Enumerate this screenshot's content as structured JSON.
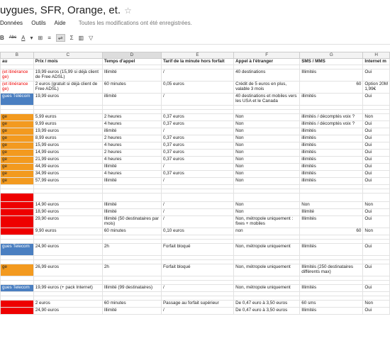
{
  "app": {
    "title": "uygues, SFR, Orange, et.",
    "star_icon": "☆"
  },
  "menu": {
    "items": [
      "Données",
      "Outils",
      "Aide"
    ],
    "saved_status": "Toutes les modifications ont été enregistrées."
  },
  "toolbar": {
    "bold": "B",
    "strike": "Abc",
    "font_color": "A",
    "fill": "▾",
    "borders": "⊞",
    "align": "≡",
    "wrap": "⇌",
    "sum": "Σ",
    "chart": "▥",
    "filter": "▽"
  },
  "sheet": {
    "column_letters": [
      "B",
      "C",
      "D",
      "E",
      "F",
      "G",
      "H"
    ],
    "headers": [
      "au",
      "Prix / mois",
      "Temps d'appel",
      "Tarif de la minute hors forfait",
      "Appel à l'étranger",
      "SMS / MMS",
      "Internet m"
    ],
    "rows": [
      {
        "kind": "blank"
      },
      {
        "kind": "r2",
        "b": "(et itinérance\nge)",
        "b_red": true,
        "c": "19,99 euros (15,99 si déjà client de Free ADSL)",
        "d": "Illimité",
        "e": "/",
        "f": "40 destinations",
        "g": "Illimités",
        "g2": "",
        "h": "Oui"
      },
      {
        "kind": "r2",
        "b": "(et itinérance\nge)",
        "b_red": true,
        "c": "2 euros (gratuit si déjà client de Free ADSL)",
        "d": "60 minutes",
        "e": "0,05 euros",
        "f": "Crédit de 5 euros en plus, valable 3 mois",
        "g": "",
        "g2": "60",
        "h": "Option 20M\n1,99€"
      },
      {
        "kind": "r2",
        "b": "gues Télécom",
        "b_fill": "blue",
        "c": "19,99 euros",
        "d": "illimité",
        "e": "/",
        "f": "40 destinations et mobiles vers les USA et le Canada",
        "g": "illimités",
        "g2": "",
        "h": "Oui"
      },
      {
        "kind": "blank"
      },
      {
        "kind": "blank"
      },
      {
        "kind": "r1",
        "b": "ge",
        "b_fill": "orange",
        "c": "5,99 euros",
        "d": "2 heures",
        "e": "0,37 euros",
        "f": "Non",
        "g": "illimités / décomptés voix ?",
        "g2": "",
        "h": "Non"
      },
      {
        "kind": "r1",
        "b": "ge",
        "b_fill": "orange",
        "c": "9,99 euros",
        "d": "4 heures",
        "e": "0,37 euros",
        "f": "Non",
        "g": "illimités / décomptés voix ?",
        "g2": "",
        "h": "Oui"
      },
      {
        "kind": "r1",
        "b": "ge",
        "b_fill": "orange",
        "c": "19,99 euros",
        "d": "illimité",
        "e": "/",
        "f": "Non",
        "g": "illimités",
        "g2": "",
        "h": "Oui"
      },
      {
        "kind": "r1",
        "b": "ge",
        "b_fill": "orange",
        "c": "8,99 euros",
        "d": "2 heures",
        "e": "0,37 euros",
        "f": "Non",
        "g": "illimités",
        "g2": "",
        "h": "Oui"
      },
      {
        "kind": "r1",
        "b": "ge",
        "b_fill": "orange",
        "c": "15,99 euros",
        "d": "4 heures",
        "e": "0,37 euros",
        "f": "Non",
        "g": "illimités",
        "g2": "",
        "h": "Oui"
      },
      {
        "kind": "r1",
        "b": "ge",
        "b_fill": "orange",
        "c": "14,99 euros",
        "d": "2 heures",
        "e": "0,37 euros",
        "f": "Non",
        "g": "illimités",
        "g2": "",
        "h": "Oui"
      },
      {
        "kind": "r1",
        "b": "ge",
        "b_fill": "orange",
        "c": "21,99 euros",
        "d": "4 heures",
        "e": "0,37 euros",
        "f": "Non",
        "g": "illimités",
        "g2": "",
        "h": "Oui"
      },
      {
        "kind": "r1",
        "b": "ge",
        "b_fill": "orange",
        "c": "44,99 euros",
        "d": "Illimité",
        "e": "/",
        "f": "Non",
        "g": "illimités",
        "g2": "",
        "h": "Oui"
      },
      {
        "kind": "r1",
        "b": "ge",
        "b_fill": "orange",
        "c": "34,99 euros",
        "d": "4 heures",
        "e": "0,37 euros",
        "f": "Non",
        "g": "illimités",
        "g2": "",
        "h": "Oui"
      },
      {
        "kind": "r1",
        "b": "ge",
        "b_fill": "orange",
        "c": "57,99 euros",
        "d": "Illimité",
        "e": "/",
        "f": "Non",
        "g": "illimités",
        "g2": "",
        "h": "Oui"
      },
      {
        "kind": "blank"
      },
      {
        "kind": "blank"
      },
      {
        "kind": "sp",
        "b": "",
        "b_fill": "red",
        "c": "",
        "d": "",
        "e": "",
        "f": "",
        "g": "",
        "g2": "",
        "h": ""
      },
      {
        "kind": "r1",
        "b": "",
        "b_fill": "red",
        "c": "14,90 euros",
        "d": "Illimité",
        "e": "/",
        "f": "Non",
        "g": "Non",
        "g2": "",
        "h": "Non"
      },
      {
        "kind": "r1",
        "b": "",
        "b_fill": "red",
        "c": "18,90 euros",
        "d": "Illimité",
        "e": "/",
        "f": "Non",
        "g": "Illimité",
        "g2": "",
        "h": "Oui"
      },
      {
        "kind": "r2",
        "b": "",
        "b_fill": "red",
        "c": "29,90 euros",
        "d": "Illimité (50 destinataires par mois)",
        "e": "/",
        "f": "Non, métropole uniquement : fixes + mobiles",
        "g": "Illimités",
        "g2": "",
        "h": "Oui"
      },
      {
        "kind": "r1",
        "b": "",
        "b_fill": "red",
        "c": "9,90 euros",
        "d": "60 minutes",
        "e": "0,10 euros",
        "f": "non",
        "g": "",
        "g2": "60",
        "h": "Non"
      },
      {
        "kind": "blank"
      },
      {
        "kind": "blank"
      },
      {
        "kind": "r2",
        "b": "gues Telecom",
        "b_fill": "blue",
        "c": "24,90 euros",
        "d": "2h",
        "e": "Forfait bloqué",
        "f": "Non, métropole uniquement",
        "g": "Illimités",
        "g2": "",
        "h": "Oui"
      },
      {
        "kind": "blank"
      },
      {
        "kind": "blank"
      },
      {
        "kind": "r2",
        "b": "ge",
        "b_fill": "orange",
        "c": "26,99 euros",
        "d": "2h",
        "e": "Forfait bloqué",
        "f": "Non, métropole uniquement",
        "g": "Illimités (250 destinataires différents max)",
        "g2": "",
        "h": "Oui"
      },
      {
        "kind": "blank"
      },
      {
        "kind": "blank"
      },
      {
        "kind": "r1",
        "b": "gues Telecom",
        "b_fill": "blue",
        "c": "19,99 euros (+ pack Internet)",
        "d": "Illimité (99 destinataires)",
        "e": "/",
        "f": "Non, métropole uniquement",
        "g": "Illimités",
        "g2": "",
        "h": "Oui"
      },
      {
        "kind": "blank"
      },
      {
        "kind": "blank"
      },
      {
        "kind": "r1",
        "b": "",
        "b_fill": "red",
        "c": "2 euros",
        "d": "60 minutes",
        "e": "Passage au forfait supérieur",
        "f": "De 0,47 euro à 3,50 euros",
        "g": "60 sms",
        "g2": "",
        "h": "Non"
      },
      {
        "kind": "r1",
        "b": "",
        "b_fill": "red",
        "c": "24,90 euros",
        "d": "Illimité",
        "e": "/",
        "f": "De 0,47 euro à 3,50 euros",
        "g": "Illimités",
        "g2": "",
        "h": "Oui"
      }
    ]
  }
}
